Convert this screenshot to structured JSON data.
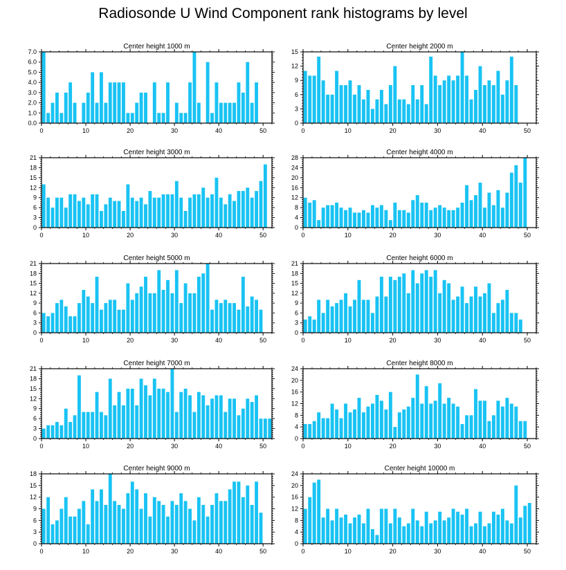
{
  "title": "Radiosonde U Wind Component rank histograms by level",
  "colors": {
    "bar": "#19c3f3",
    "axis": "#000000"
  },
  "chart_data": [
    {
      "type": "bar",
      "title": "Center height 1000 m",
      "xlim": [
        0,
        52
      ],
      "ylim": [
        0,
        7
      ],
      "yticks": [
        "0.0",
        "1.0",
        "2.0",
        "3.0",
        "4.0",
        "5.0",
        "6.0",
        "7.0"
      ],
      "ytick_values": [
        0,
        1,
        2,
        3,
        4,
        5,
        6,
        7
      ],
      "xticks": [
        0,
        10,
        20,
        30,
        40,
        50
      ],
      "values": [
        7,
        1,
        2,
        3,
        1,
        3,
        4,
        2,
        0,
        2,
        3,
        5,
        2,
        5,
        2,
        4,
        4,
        4,
        4,
        1,
        1,
        2,
        3,
        3,
        0,
        4,
        1,
        1,
        4,
        0,
        2,
        1,
        1,
        4,
        7,
        2,
        0,
        6,
        1,
        4,
        2,
        2,
        2,
        2,
        4,
        3,
        6,
        2,
        4,
        0,
        0,
        0
      ]
    },
    {
      "type": "bar",
      "title": "Center height 2000 m",
      "xlim": [
        0,
        52
      ],
      "ylim": [
        0,
        15
      ],
      "yticks": [
        "0",
        "3",
        "6",
        "9",
        "12",
        "15"
      ],
      "ytick_values": [
        0,
        3,
        6,
        9,
        12,
        15
      ],
      "xticks": [
        0,
        10,
        20,
        30,
        40,
        50
      ],
      "values": [
        11,
        10,
        10,
        14,
        9,
        6,
        6,
        11,
        8,
        8,
        9,
        6,
        8,
        5,
        7,
        3,
        5,
        7,
        4,
        8,
        12,
        5,
        5,
        4,
        8,
        5,
        8,
        4,
        14,
        10,
        8,
        9,
        10,
        9,
        10,
        15,
        10,
        5,
        7,
        12,
        8,
        9,
        8,
        11,
        6,
        9,
        14,
        8,
        0,
        0,
        0,
        0
      ]
    },
    {
      "type": "bar",
      "title": "Center height 3000 m",
      "xlim": [
        0,
        52
      ],
      "ylim": [
        0,
        21
      ],
      "yticks": [
        "0",
        "3",
        "6",
        "9",
        "12",
        "15",
        "18",
        "21"
      ],
      "ytick_values": [
        0,
        3,
        6,
        9,
        12,
        15,
        18,
        21
      ],
      "xticks": [
        0,
        10,
        20,
        30,
        40,
        50
      ],
      "values": [
        13,
        9,
        6,
        9,
        9,
        6,
        10,
        10,
        8,
        9,
        7,
        10,
        10,
        5,
        7,
        9,
        8,
        8,
        5,
        13,
        9,
        8,
        9,
        7,
        11,
        9,
        9,
        10,
        10,
        10,
        14,
        9,
        5,
        9,
        10,
        10,
        12,
        9,
        10,
        15,
        9,
        7,
        10,
        8,
        11,
        11,
        12,
        9,
        11,
        14,
        19,
        0
      ]
    },
    {
      "type": "bar",
      "title": "Center height 4000 m",
      "xlim": [
        0,
        52
      ],
      "ylim": [
        0,
        28
      ],
      "yticks": [
        "0",
        "4",
        "8",
        "12",
        "16",
        "20",
        "24",
        "28"
      ],
      "ytick_values": [
        0,
        4,
        8,
        12,
        16,
        20,
        24,
        28
      ],
      "xticks": [
        0,
        10,
        20,
        30,
        40,
        50
      ],
      "values": [
        12,
        10,
        11,
        3,
        8,
        9,
        9,
        10,
        8,
        7,
        8,
        6,
        6,
        7,
        6,
        9,
        8,
        9,
        7,
        3,
        10,
        7,
        7,
        6,
        11,
        13,
        10,
        10,
        7,
        8,
        9,
        8,
        7,
        7,
        8,
        10,
        17,
        11,
        13,
        18,
        8,
        14,
        9,
        15,
        8,
        14,
        22,
        25,
        18,
        28,
        0,
        0
      ]
    },
    {
      "type": "bar",
      "title": "Center height 5000 m",
      "xlim": [
        0,
        52
      ],
      "ylim": [
        0,
        21
      ],
      "yticks": [
        "0",
        "3",
        "6",
        "9",
        "12",
        "15",
        "18",
        "21"
      ],
      "ytick_values": [
        0,
        3,
        6,
        9,
        12,
        15,
        18,
        21
      ],
      "xticks": [
        0,
        10,
        20,
        30,
        40,
        50
      ],
      "values": [
        6,
        5,
        6,
        9,
        10,
        8,
        5,
        5,
        9,
        13,
        11,
        9,
        17,
        7,
        9,
        10,
        10,
        7,
        7,
        15,
        10,
        12,
        14,
        17,
        12,
        12,
        19,
        13,
        16,
        12,
        19,
        9,
        15,
        12,
        12,
        17,
        18,
        21,
        7,
        10,
        9,
        10,
        9,
        9,
        7,
        17,
        8,
        11,
        10,
        7,
        0,
        0
      ]
    },
    {
      "type": "bar",
      "title": "Center height 6000 m",
      "xlim": [
        0,
        52
      ],
      "ylim": [
        0,
        21
      ],
      "yticks": [
        "0",
        "3",
        "6",
        "9",
        "12",
        "15",
        "18",
        "21"
      ],
      "ytick_values": [
        0,
        3,
        6,
        9,
        12,
        15,
        18,
        21
      ],
      "xticks": [
        0,
        10,
        20,
        30,
        40,
        50
      ],
      "values": [
        4,
        5,
        4,
        10,
        6,
        10,
        8,
        9,
        10,
        12,
        8,
        10,
        16,
        10,
        10,
        6,
        11,
        17,
        11,
        17,
        16,
        17,
        18,
        12,
        19,
        15,
        18,
        19,
        17,
        19,
        12,
        16,
        15,
        10,
        11,
        14,
        9,
        11,
        14,
        11,
        12,
        15,
        6,
        9,
        10,
        13,
        6,
        6,
        4,
        0,
        0,
        0
      ]
    },
    {
      "type": "bar",
      "title": "Center height 7000 m",
      "xlim": [
        0,
        52
      ],
      "ylim": [
        0,
        21
      ],
      "yticks": [
        "0",
        "3",
        "6",
        "9",
        "12",
        "15",
        "18",
        "21"
      ],
      "ytick_values": [
        0,
        3,
        6,
        9,
        12,
        15,
        18,
        21
      ],
      "xticks": [
        0,
        10,
        20,
        30,
        40,
        50
      ],
      "values": [
        3,
        4,
        4,
        5,
        4,
        9,
        5,
        7,
        19,
        8,
        8,
        8,
        14,
        8,
        7,
        18,
        10,
        14,
        10,
        15,
        15,
        10,
        18,
        16,
        13,
        18,
        15,
        15,
        14,
        21,
        8,
        14,
        15,
        13,
        8,
        14,
        13,
        10,
        12,
        13,
        13,
        8,
        12,
        12,
        7,
        9,
        12,
        11,
        13,
        6,
        6,
        6
      ]
    },
    {
      "type": "bar",
      "title": "Center height 8000 m",
      "xlim": [
        0,
        52
      ],
      "ylim": [
        0,
        24
      ],
      "yticks": [
        "0",
        "4",
        "8",
        "12",
        "16",
        "20",
        "24"
      ],
      "ytick_values": [
        0,
        4,
        8,
        12,
        16,
        20,
        24
      ],
      "xticks": [
        0,
        10,
        20,
        30,
        40,
        50
      ],
      "values": [
        5,
        5,
        6,
        9,
        7,
        7,
        12,
        10,
        7,
        12,
        9,
        10,
        14,
        9,
        11,
        12,
        15,
        13,
        10,
        16,
        4,
        9,
        10,
        11,
        14,
        22,
        12,
        18,
        12,
        13,
        19,
        12,
        14,
        12,
        11,
        5,
        8,
        8,
        17,
        13,
        13,
        6,
        8,
        13,
        11,
        14,
        12,
        11,
        6,
        6,
        0,
        0
      ]
    },
    {
      "type": "bar",
      "title": "Center height 9000 m",
      "xlim": [
        0,
        52
      ],
      "ylim": [
        0,
        18
      ],
      "yticks": [
        "0",
        "3",
        "6",
        "9",
        "12",
        "15",
        "18"
      ],
      "ytick_values": [
        0,
        3,
        6,
        9,
        12,
        15,
        18
      ],
      "xticks": [
        0,
        10,
        20,
        30,
        40,
        50
      ],
      "values": [
        9,
        12,
        5,
        6,
        9,
        12,
        7,
        7,
        9,
        11,
        5,
        14,
        11,
        14,
        10,
        18,
        11,
        10,
        9,
        13,
        16,
        14,
        9,
        13,
        7,
        12,
        11,
        10,
        7,
        11,
        10,
        13,
        11,
        9,
        6,
        12,
        10,
        7,
        10,
        13,
        11,
        11,
        14,
        16,
        16,
        12,
        15,
        10,
        16,
        8,
        0,
        0
      ]
    },
    {
      "type": "bar",
      "title": "Center height 10000 m",
      "xlim": [
        0,
        52
      ],
      "ylim": [
        0,
        24
      ],
      "yticks": [
        "0",
        "4",
        "8",
        "12",
        "16",
        "20",
        "24"
      ],
      "ytick_values": [
        0,
        4,
        8,
        12,
        16,
        20,
        24
      ],
      "xticks": [
        0,
        10,
        20,
        30,
        40,
        50
      ],
      "values": [
        12,
        16,
        21,
        22,
        9,
        12,
        8,
        12,
        9,
        10,
        7,
        9,
        10,
        7,
        12,
        5,
        3,
        12,
        12,
        7,
        12,
        9,
        6,
        7,
        12,
        8,
        6,
        11,
        7,
        8,
        11,
        8,
        9,
        12,
        11,
        10,
        12,
        6,
        7,
        11,
        6,
        7,
        11,
        10,
        12,
        8,
        7,
        20,
        9,
        13,
        14,
        0
      ]
    }
  ]
}
